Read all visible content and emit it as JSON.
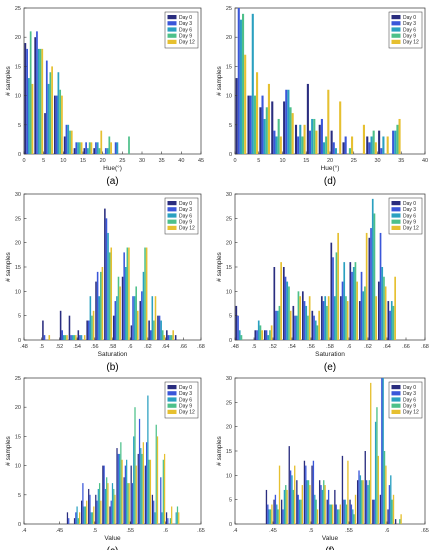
{
  "figure": {
    "ylabel": "# samples",
    "legend_entries": [
      "Day 0",
      "Day 3",
      "Day 6",
      "Day 9",
      "Day 12"
    ],
    "series_colors": [
      "#2a2d7f",
      "#3a56d9",
      "#2aa0c0",
      "#4dc08a",
      "#e6c030"
    ]
  },
  "chart_data": [
    {
      "type": "bar",
      "panel_label": "(a)",
      "xlabel": "Hue(°)",
      "ylabel": "# samples",
      "xlim": [
        0,
        45
      ],
      "xticks": [
        0,
        5,
        10,
        15,
        20,
        25,
        30,
        35,
        40,
        45
      ],
      "ylim": [
        0,
        25
      ],
      "yticks": [
        0,
        5,
        10,
        15,
        20,
        25
      ],
      "bin_width": 2.5,
      "categories": [
        1.25,
        3.75,
        6.25,
        8.75,
        11.25,
        13.75,
        16.25,
        18.75,
        21.25,
        23.75,
        26.25,
        28.75
      ],
      "series": [
        {
          "name": "Day 0",
          "values": [
            19,
            20,
            7,
            10,
            3,
            1,
            1,
            1,
            0,
            0,
            0,
            0
          ]
        },
        {
          "name": "Day 3",
          "values": [
            18,
            21,
            16,
            10,
            5,
            2,
            2,
            2,
            1,
            2,
            0,
            0
          ]
        },
        {
          "name": "Day 6",
          "values": [
            13,
            18,
            12,
            14,
            5,
            2,
            1,
            2,
            1,
            2,
            0,
            0
          ]
        },
        {
          "name": "Day 9",
          "values": [
            21,
            18,
            14,
            11,
            4,
            2,
            2,
            1,
            3,
            0,
            3,
            0
          ]
        },
        {
          "name": "Day 12",
          "values": [
            12,
            18,
            15,
            10,
            4,
            2,
            2,
            4,
            2,
            0,
            0,
            0
          ]
        }
      ],
      "legend": "top-right"
    },
    {
      "type": "bar",
      "panel_label": "(d)",
      "xlabel": "Hue(°)",
      "ylabel": "# samples",
      "xlim": [
        0,
        40
      ],
      "xticks": [
        0,
        5,
        10,
        15,
        20,
        25,
        30,
        35,
        40
      ],
      "ylim": [
        0,
        25
      ],
      "yticks": [
        0,
        5,
        10,
        15,
        20,
        25
      ],
      "bin_width": 2.5,
      "categories": [
        1.25,
        3.75,
        6.25,
        8.75,
        11.25,
        13.75,
        16.25,
        18.75,
        21.25,
        23.75,
        26.25,
        28.75,
        31.25,
        33.75
      ],
      "series": [
        {
          "name": "Day 0",
          "values": [
            13,
            10,
            8,
            9,
            9,
            5,
            12,
            5,
            4,
            2,
            0,
            3,
            4,
            0
          ]
        },
        {
          "name": "Day 3",
          "values": [
            25,
            10,
            10,
            4,
            11,
            3,
            4,
            6,
            2,
            3,
            0,
            2,
            1,
            4
          ]
        },
        {
          "name": "Day 6",
          "values": [
            23,
            24,
            6,
            3,
            11,
            5,
            6,
            2,
            1,
            0,
            0,
            3,
            3,
            4
          ]
        },
        {
          "name": "Day 9",
          "values": [
            24,
            10,
            8,
            6,
            8,
            3,
            6,
            3,
            0,
            1,
            0,
            4,
            0,
            5
          ]
        },
        {
          "name": "Day 12",
          "values": [
            17,
            14,
            12,
            3,
            7,
            5,
            4,
            11,
            9,
            3,
            5,
            2,
            3,
            6
          ]
        }
      ],
      "legend": "top-right"
    },
    {
      "type": "bar",
      "panel_label": "(b)",
      "xlabel": "Saturation",
      "ylabel": "# samples",
      "xlim": [
        0.48,
        0.68
      ],
      "xticks": [
        0.48,
        0.5,
        0.52,
        0.54,
        0.56,
        0.58,
        0.6,
        0.62,
        0.64,
        0.66,
        0.68
      ],
      "ylim": [
        0,
        30
      ],
      "yticks": [
        0,
        5,
        10,
        15,
        20,
        25,
        30
      ],
      "bin_width": 0.01,
      "categories": [
        0.505,
        0.515,
        0.525,
        0.535,
        0.545,
        0.555,
        0.565,
        0.575,
        0.585,
        0.595,
        0.605,
        0.615,
        0.625,
        0.635,
        0.645,
        0.655
      ],
      "series": [
        {
          "name": "Day 0",
          "values": [
            4,
            0,
            6,
            5,
            2,
            4,
            12,
            27,
            5,
            13,
            3,
            8,
            4,
            5,
            2,
            1
          ]
        },
        {
          "name": "Day 3",
          "values": [
            1,
            0,
            2,
            1,
            1,
            4,
            14,
            25,
            8,
            18,
            9,
            10,
            2,
            5,
            1,
            0
          ]
        },
        {
          "name": "Day 6",
          "values": [
            0,
            0,
            1,
            1,
            1,
            9,
            9,
            22,
            9,
            15,
            9,
            14,
            9,
            4,
            1,
            0
          ]
        },
        {
          "name": "Day 9",
          "values": [
            0,
            0,
            1,
            1,
            0,
            5,
            14,
            18,
            13,
            19,
            11,
            19,
            4,
            2,
            1,
            0
          ]
        },
        {
          "name": "Day 12",
          "values": [
            1,
            0,
            1,
            1,
            1,
            6,
            15,
            19,
            11,
            19,
            6,
            19,
            9,
            1,
            2,
            0
          ]
        }
      ],
      "legend": "top-right"
    },
    {
      "type": "bar",
      "panel_label": "(e)",
      "xlabel": "Saturation",
      "ylabel": "# samples",
      "xlim": [
        0.48,
        0.68
      ],
      "xticks": [
        0.48,
        0.5,
        0.52,
        0.54,
        0.56,
        0.58,
        0.6,
        0.62,
        0.64,
        0.66,
        0.68
      ],
      "ylim": [
        0,
        30
      ],
      "yticks": [
        0,
        5,
        10,
        15,
        20,
        25,
        30
      ],
      "bin_width": 0.01,
      "categories": [
        0.485,
        0.495,
        0.505,
        0.515,
        0.525,
        0.535,
        0.545,
        0.555,
        0.565,
        0.575,
        0.585,
        0.595,
        0.605,
        0.615,
        0.625,
        0.635,
        0.645
      ],
      "series": [
        {
          "name": "Day 0",
          "values": [
            7,
            0,
            2,
            2,
            15,
            15,
            7,
            10,
            6,
            9,
            20,
            9,
            16,
            8,
            21,
            12,
            8
          ]
        },
        {
          "name": "Day 3",
          "values": [
            5,
            0,
            2,
            2,
            6,
            13,
            5,
            8,
            5,
            8,
            17,
            12,
            14,
            14,
            23,
            22,
            6
          ]
        },
        {
          "name": "Day 6",
          "values": [
            2,
            0,
            4,
            1,
            6,
            12,
            5,
            7,
            4,
            9,
            9,
            16,
            15,
            10,
            29,
            15,
            8
          ]
        },
        {
          "name": "Day 9",
          "values": [
            1,
            0,
            3,
            2,
            7,
            11,
            10,
            5,
            3,
            7,
            18,
            9,
            16,
            11,
            26,
            13,
            7
          ]
        },
        {
          "name": "Day 12",
          "values": [
            0,
            0,
            2,
            3,
            16,
            6,
            9,
            9,
            6,
            9,
            22,
            8,
            12,
            22,
            9,
            11,
            13
          ]
        }
      ],
      "legend": "top-right"
    },
    {
      "type": "bar",
      "panel_label": "(c)",
      "xlabel": "Value",
      "ylabel": "# samples",
      "xlim": [
        0.4,
        0.65
      ],
      "xticks": [
        0.4,
        0.45,
        0.5,
        0.55,
        0.6,
        0.65
      ],
      "ylim": [
        0,
        25
      ],
      "yticks": [
        0,
        5,
        10,
        15,
        20,
        25
      ],
      "bin_width": 0.01,
      "categories": [
        0.465,
        0.475,
        0.485,
        0.495,
        0.505,
        0.515,
        0.525,
        0.535,
        0.545,
        0.555,
        0.565,
        0.575,
        0.585,
        0.595,
        0.605,
        0.615
      ],
      "series": [
        {
          "name": "Day 0",
          "values": [
            2,
            1,
            4,
            6,
            5,
            10,
            3,
            13,
            8,
            10,
            12,
            10,
            5,
            0,
            2,
            0
          ]
        },
        {
          "name": "Day 3",
          "values": [
            1,
            2,
            7,
            5,
            4,
            10,
            4,
            12,
            10,
            7,
            18,
            14,
            4,
            8,
            1,
            0
          ]
        },
        {
          "name": "Day 6",
          "values": [
            0,
            3,
            3,
            2,
            6,
            6,
            7,
            12,
            11,
            15,
            13,
            22,
            2,
            2,
            0,
            2
          ]
        },
        {
          "name": "Day 9",
          "values": [
            0,
            1,
            3,
            2,
            7,
            8,
            6,
            14,
            7,
            20,
            12,
            11,
            17,
            11,
            1,
            3
          ]
        },
        {
          "name": "Day 12",
          "values": [
            0,
            2,
            4,
            3,
            4,
            7,
            5,
            11,
            7,
            10,
            14,
            11,
            15,
            12,
            3,
            2
          ]
        }
      ],
      "legend": "top-right"
    },
    {
      "type": "bar",
      "panel_label": "(f)",
      "xlabel": "Value",
      "ylabel": "# samples",
      "xlim": [
        0.4,
        0.65
      ],
      "xticks": [
        0.4,
        0.45,
        0.5,
        0.55,
        0.6,
        0.65
      ],
      "ylim": [
        0,
        30
      ],
      "yticks": [
        0,
        5,
        10,
        15,
        20,
        25,
        30
      ],
      "bin_width": 0.01,
      "categories": [
        0.445,
        0.455,
        0.465,
        0.475,
        0.485,
        0.495,
        0.505,
        0.515,
        0.525,
        0.535,
        0.545,
        0.555,
        0.565,
        0.575,
        0.585,
        0.595,
        0.605,
        0.615
      ],
      "series": [
        {
          "name": "Day 0",
          "values": [
            7,
            5,
            5,
            16,
            9,
            13,
            12,
            9,
            5,
            7,
            14,
            5,
            9,
            15,
            5,
            6,
            3,
            1
          ]
        },
        {
          "name": "Day 3",
          "values": [
            4,
            6,
            3,
            11,
            6,
            12,
            13,
            8,
            7,
            4,
            5,
            4,
            11,
            9,
            5,
            30,
            8,
            0
          ]
        },
        {
          "name": "Day 6",
          "values": [
            3,
            4,
            7,
            10,
            5,
            9,
            6,
            7,
            4,
            3,
            5,
            3,
            10,
            8,
            21,
            30,
            10,
            0
          ]
        },
        {
          "name": "Day 9",
          "values": [
            3,
            3,
            8,
            7,
            5,
            9,
            5,
            9,
            4,
            3,
            4,
            2,
            9,
            9,
            24,
            15,
            5,
            1
          ]
        },
        {
          "name": "Day 12",
          "values": [
            4,
            12,
            7,
            12,
            8,
            8,
            3,
            8,
            4,
            4,
            13,
            6,
            9,
            29,
            14,
            12,
            6,
            2
          ]
        }
      ],
      "legend": "top-right"
    }
  ]
}
